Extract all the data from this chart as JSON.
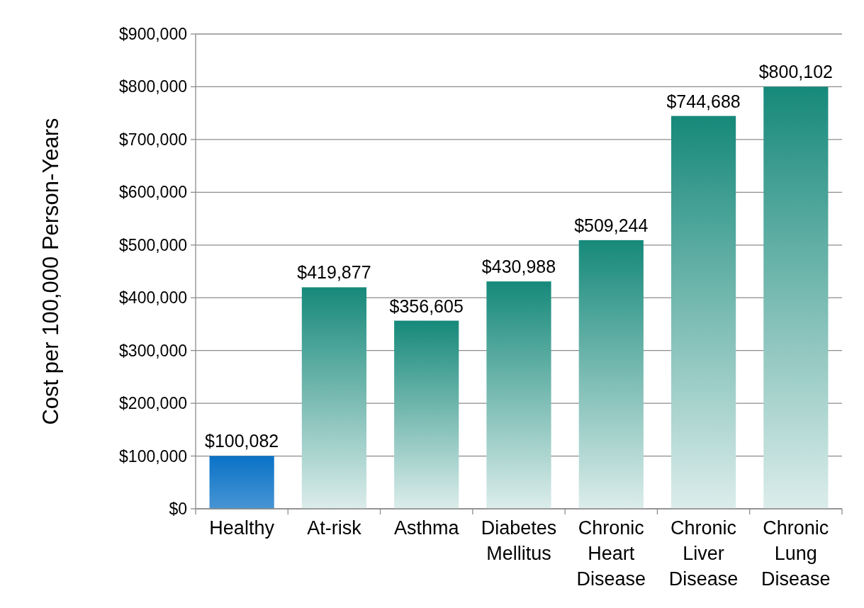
{
  "chart_data": {
    "type": "bar",
    "ylabel": "Cost per 100,000 Person-Years",
    "categories": [
      "Healthy",
      "At-risk",
      "Asthma",
      "Diabetes Mellitus",
      "Chronic Heart Disease",
      "Chronic Liver Disease",
      "Chronic Lung Disease"
    ],
    "values": [
      100082,
      419877,
      356605,
      430988,
      509244,
      744688,
      800102
    ],
    "colors": [
      "#0a72c6",
      "#16897a",
      "#16897a",
      "#16897a",
      "#16897a",
      "#16897a",
      "#16897a"
    ],
    "value_labels": [
      "$100,082",
      "$419,877",
      "$356,605",
      "$430,988",
      "$509,244",
      "$744,688",
      "$800,102"
    ],
    "ylim": [
      0,
      900000
    ],
    "yticks": [
      {
        "value": 0,
        "label": "$0"
      },
      {
        "value": 100000,
        "label": "$100,000"
      },
      {
        "value": 200000,
        "label": "$200,000"
      },
      {
        "value": 300000,
        "label": "$300,000"
      },
      {
        "value": 400000,
        "label": "$400,000"
      },
      {
        "value": 500000,
        "label": "$500,000"
      },
      {
        "value": 600000,
        "label": "$600,000"
      },
      {
        "value": 700000,
        "label": "$700,000"
      },
      {
        "value": 800000,
        "label": "$800,000"
      },
      {
        "value": 900000,
        "label": "$900,000"
      }
    ],
    "grid": "y"
  }
}
